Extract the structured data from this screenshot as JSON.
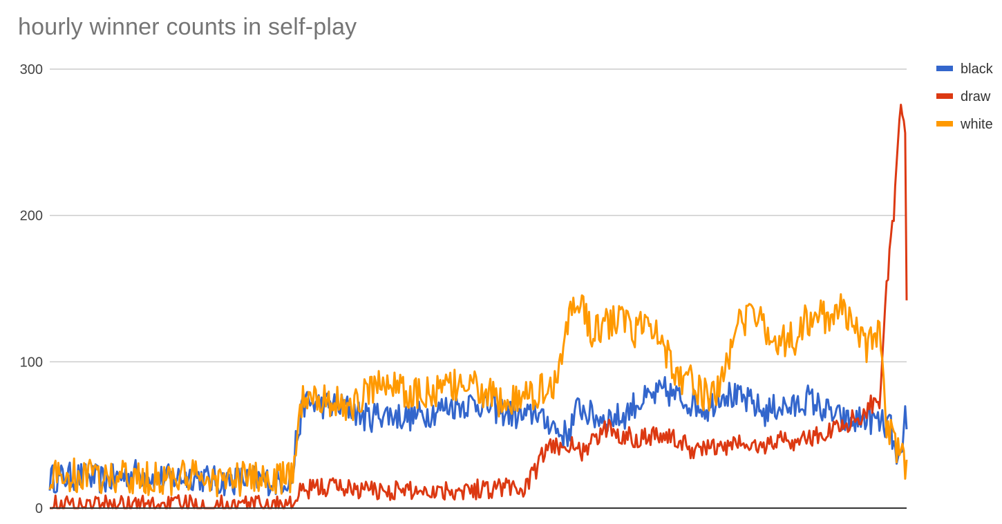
{
  "chart_data": {
    "type": "line",
    "title": "hourly winner counts in self-play",
    "xlabel": "",
    "ylabel": "",
    "ylim": [
      0,
      300
    ],
    "y_ticks": [
      "0",
      "100",
      "200",
      "300"
    ],
    "grid": true,
    "legend_position": "right",
    "n_points": 600,
    "series": [
      {
        "name": "black",
        "color": "#3366cc",
        "knots": [
          [
            0,
            20
          ],
          [
            20,
            22
          ],
          [
            40,
            19
          ],
          [
            60,
            24
          ],
          [
            80,
            20
          ],
          [
            100,
            22
          ],
          [
            120,
            18
          ],
          [
            140,
            20
          ],
          [
            160,
            18
          ],
          [
            170,
            21
          ],
          [
            172,
            45
          ],
          [
            178,
            72
          ],
          [
            200,
            70
          ],
          [
            210,
            68
          ],
          [
            220,
            62
          ],
          [
            225,
            62
          ],
          [
            230,
            65
          ],
          [
            250,
            62
          ],
          [
            265,
            65
          ],
          [
            280,
            70
          ],
          [
            300,
            72
          ],
          [
            310,
            68
          ],
          [
            320,
            65
          ],
          [
            330,
            62
          ],
          [
            340,
            68
          ],
          [
            335,
            62
          ],
          [
            345,
            58
          ],
          [
            350,
            60
          ],
          [
            355,
            52
          ],
          [
            362,
            50
          ],
          [
            370,
            70
          ],
          [
            380,
            62
          ],
          [
            390,
            62
          ],
          [
            400,
            62
          ],
          [
            410,
            72
          ],
          [
            420,
            75
          ],
          [
            430,
            80
          ],
          [
            440,
            75
          ],
          [
            450,
            72
          ],
          [
            460,
            68
          ],
          [
            470,
            80
          ],
          [
            480,
            75
          ],
          [
            490,
            72
          ],
          [
            500,
            65
          ],
          [
            510,
            70
          ],
          [
            520,
            68
          ],
          [
            530,
            75
          ],
          [
            540,
            68
          ],
          [
            550,
            62
          ],
          [
            560,
            58
          ],
          [
            570,
            62
          ],
          [
            580,
            58
          ],
          [
            588,
            55
          ],
          [
            592,
            30
          ],
          [
            596,
            30
          ],
          [
            598,
            65
          ],
          [
            600,
            58
          ]
        ],
        "noise_amp": 10
      },
      {
        "name": "draw",
        "color": "#dc3912",
        "knots": [
          [
            0,
            2
          ],
          [
            100,
            2
          ],
          [
            160,
            2
          ],
          [
            170,
            2
          ],
          [
            175,
            10
          ],
          [
            185,
            14
          ],
          [
            200,
            15
          ],
          [
            215,
            13
          ],
          [
            230,
            12
          ],
          [
            260,
            12
          ],
          [
            300,
            13
          ],
          [
            320,
            15
          ],
          [
            330,
            12
          ],
          [
            340,
            25
          ],
          [
            345,
            38
          ],
          [
            360,
            45
          ],
          [
            370,
            38
          ],
          [
            380,
            45
          ],
          [
            390,
            55
          ],
          [
            400,
            50
          ],
          [
            410,
            48
          ],
          [
            420,
            50
          ],
          [
            430,
            50
          ],
          [
            440,
            45
          ],
          [
            450,
            40
          ],
          [
            460,
            42
          ],
          [
            470,
            40
          ],
          [
            480,
            45
          ],
          [
            490,
            42
          ],
          [
            500,
            42
          ],
          [
            510,
            48
          ],
          [
            520,
            45
          ],
          [
            530,
            48
          ],
          [
            540,
            50
          ],
          [
            550,
            55
          ],
          [
            560,
            60
          ],
          [
            570,
            65
          ],
          [
            575,
            72
          ],
          [
            580,
            75
          ],
          [
            585,
            150
          ],
          [
            590,
            200
          ],
          [
            595,
            280
          ],
          [
            598,
            250
          ],
          [
            600,
            20
          ]
        ],
        "noise_amp": 7
      },
      {
        "name": "white",
        "color": "#ff9900",
        "knots": [
          [
            0,
            22
          ],
          [
            20,
            22
          ],
          [
            40,
            21
          ],
          [
            60,
            20
          ],
          [
            80,
            20
          ],
          [
            100,
            21
          ],
          [
            120,
            19
          ],
          [
            140,
            20
          ],
          [
            160,
            20
          ],
          [
            170,
            20
          ],
          [
            172,
            45
          ],
          [
            178,
            80
          ],
          [
            200,
            72
          ],
          [
            210,
            68
          ],
          [
            225,
            82
          ],
          [
            240,
            88
          ],
          [
            250,
            75
          ],
          [
            265,
            80
          ],
          [
            275,
            80
          ],
          [
            290,
            85
          ],
          [
            300,
            82
          ],
          [
            310,
            75
          ],
          [
            320,
            72
          ],
          [
            330,
            72
          ],
          [
            340,
            80
          ],
          [
            350,
            82
          ],
          [
            355,
            90
          ],
          [
            365,
            140
          ],
          [
            370,
            140
          ],
          [
            380,
            120
          ],
          [
            390,
            125
          ],
          [
            400,
            130
          ],
          [
            410,
            120
          ],
          [
            420,
            130
          ],
          [
            430,
            110
          ],
          [
            440,
            90
          ],
          [
            450,
            85
          ],
          [
            460,
            75
          ],
          [
            470,
            85
          ],
          [
            480,
            125
          ],
          [
            490,
            130
          ],
          [
            500,
            125
          ],
          [
            510,
            115
          ],
          [
            520,
            115
          ],
          [
            530,
            130
          ],
          [
            540,
            130
          ],
          [
            550,
            130
          ],
          [
            555,
            140
          ],
          [
            560,
            125
          ],
          [
            570,
            110
          ],
          [
            580,
            120
          ],
          [
            585,
            60
          ],
          [
            590,
            45
          ],
          [
            595,
            40
          ],
          [
            600,
            20
          ]
        ],
        "noise_amp": 12
      }
    ]
  }
}
